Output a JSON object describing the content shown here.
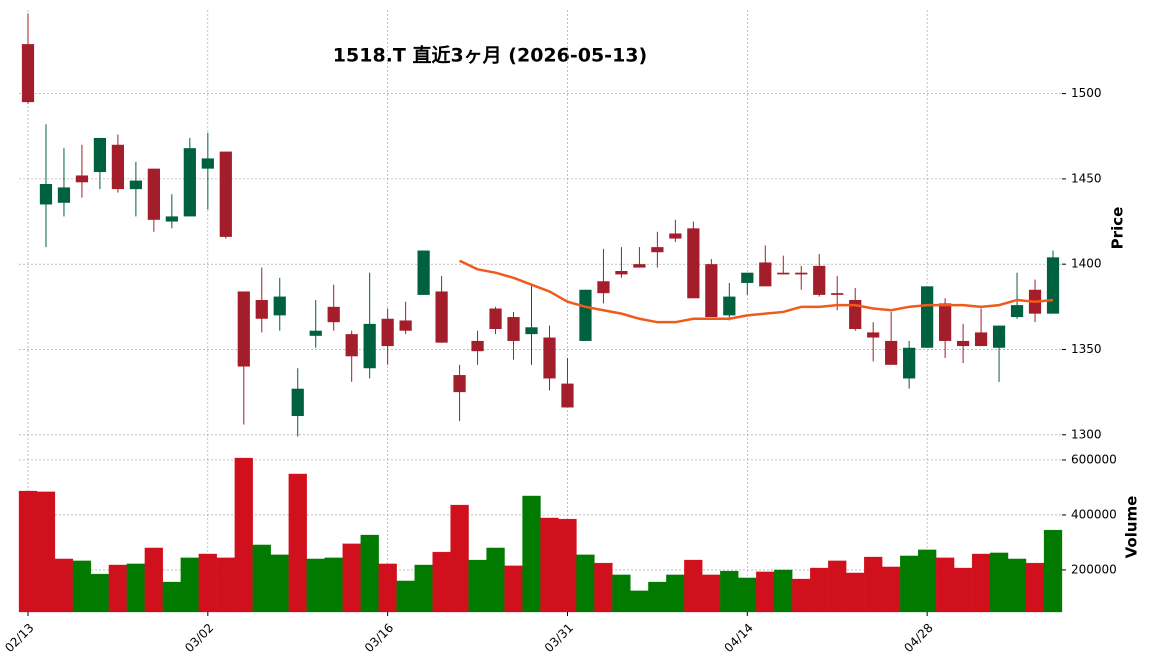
{
  "chart_data": {
    "type": "candlestick",
    "title": "1518.T 直近3ヶ月 (2026-05-13)",
    "categories": [
      "02/13",
      null,
      null,
      null,
      null,
      null,
      null,
      null,
      null,
      null,
      "03/02",
      null,
      null,
      null,
      null,
      null,
      null,
      null,
      null,
      null,
      "03/16",
      null,
      null,
      null,
      null,
      null,
      null,
      null,
      null,
      null,
      "03/31",
      null,
      null,
      null,
      null,
      null,
      null,
      null,
      null,
      null,
      "04/14",
      null,
      null,
      null,
      null,
      null,
      null,
      null,
      null,
      null,
      "04/28",
      null,
      null,
      null,
      null,
      null,
      null,
      null
    ],
    "open": [
      1529,
      1435,
      1436,
      1452,
      1454,
      1470,
      1444,
      1456,
      1425,
      1428,
      1456,
      1466,
      1384,
      1379,
      1370,
      1311,
      1358,
      1375,
      1359,
      1339,
      1368,
      1367,
      1382,
      1384,
      1335,
      1355,
      1374,
      1369,
      1359,
      1357,
      1330,
      1355,
      1390,
      1396,
      1400,
      1410,
      1418,
      1421,
      1400,
      1370,
      1389,
      1401,
      1395,
      1395,
      1399,
      1383,
      1379,
      1360,
      1355,
      1333,
      1351,
      1377,
      1355,
      1360,
      1351,
      1369,
      1385,
      1371
    ],
    "high": [
      1547,
      1482,
      1468,
      1470,
      1474,
      1476,
      1460,
      1456,
      1441,
      1474,
      1477,
      1466,
      1384,
      1398,
      1392,
      1339,
      1379,
      1388,
      1361,
      1395,
      1374,
      1378,
      1408,
      1393,
      1341,
      1361,
      1375,
      1372,
      1388,
      1364,
      1345,
      1385,
      1409,
      1410,
      1410,
      1419,
      1426,
      1425,
      1403,
      1389,
      1395,
      1411,
      1405,
      1399,
      1406,
      1393,
      1386,
      1366,
      1372,
      1355,
      1387,
      1380,
      1365,
      1374,
      1364,
      1395,
      1391,
      1408
    ],
    "low": [
      1494,
      1410,
      1428,
      1439,
      1444,
      1442,
      1428,
      1419,
      1421,
      1428,
      1432,
      1415,
      1306,
      1360,
      1361,
      1299,
      1351,
      1361,
      1331,
      1333,
      1341,
      1359,
      1382,
      1354,
      1308,
      1341,
      1359,
      1344,
      1341,
      1326,
      1316,
      1355,
      1377,
      1392,
      1398,
      1398,
      1413,
      1380,
      1369,
      1367,
      1382,
      1387,
      1394,
      1385,
      1381,
      1373,
      1361,
      1343,
      1341,
      1327,
      1351,
      1345,
      1342,
      1352,
      1331,
      1368,
      1366,
      1371
    ],
    "close": [
      1495,
      1447,
      1445,
      1448,
      1474,
      1444,
      1449,
      1426,
      1428,
      1468,
      1462,
      1416,
      1340,
      1368,
      1381,
      1327,
      1361,
      1366,
      1346,
      1365,
      1352,
      1361,
      1408,
      1354,
      1325,
      1349,
      1362,
      1355,
      1363,
      1333,
      1316,
      1385,
      1383,
      1394,
      1398,
      1407,
      1415,
      1380,
      1369,
      1381,
      1395,
      1387,
      1394,
      1394,
      1382,
      1382,
      1362,
      1357,
      1341,
      1351,
      1387,
      1355,
      1352,
      1352,
      1364,
      1376,
      1371,
      1404
    ],
    "up_color": "#00613f",
    "down_color": "#a31d2a",
    "ma": {
      "color": "#f05a1a",
      "values": [
        null,
        null,
        null,
        null,
        null,
        null,
        null,
        null,
        null,
        null,
        null,
        null,
        null,
        null,
        null,
        null,
        null,
        null,
        null,
        null,
        null,
        null,
        null,
        null,
        1402,
        1397,
        1395,
        1392,
        1388,
        1384,
        1378,
        1375,
        1373,
        1371,
        1368,
        1366,
        1366,
        1368,
        1368,
        1368,
        1370,
        1371,
        1372,
        1375,
        1375,
        1376,
        1376,
        1374,
        1373,
        1375,
        1376,
        1376,
        1376,
        1375,
        1376,
        1379,
        1378,
        1379
      ]
    },
    "ylabel": "Price",
    "ylim": [
      1294,
      1549
    ],
    "yticks": [
      1300,
      1350,
      1400,
      1450,
      1500
    ],
    "grid": true,
    "volume": {
      "label": "Volume",
      "ylim": [
        47000,
        618000
      ],
      "yticks": [
        200000,
        400000,
        600000
      ],
      "values": [
        487000,
        484000,
        240000,
        233000,
        185000,
        218000,
        222000,
        280000,
        156000,
        244000,
        258000,
        244000,
        607000,
        291000,
        255000,
        549000,
        240000,
        244000,
        295000,
        327000,
        222000,
        160000,
        218000,
        265000,
        436000,
        236000,
        280000,
        215000,
        469000,
        389000,
        385000,
        255000,
        225000,
        182000,
        124000,
        156000,
        182000,
        236000,
        182000,
        196000,
        171000,
        193000,
        200000,
        167000,
        207000,
        233000,
        189000,
        247000,
        211000,
        251000,
        273000,
        244000,
        207000,
        258000,
        262000,
        240000,
        225000,
        345000
      ],
      "colors": [
        "#d0101d",
        "#d0101d",
        "#d0101d",
        "#007a00",
        "#007a00",
        "#d0101d",
        "#007a00",
        "#d0101d",
        "#007a00",
        "#007a00",
        "#d0101d",
        "#d0101d",
        "#d0101d",
        "#007a00",
        "#007a00",
        "#d0101d",
        "#007a00",
        "#007a00",
        "#d0101d",
        "#007a00",
        "#d0101d",
        "#007a00",
        "#007a00",
        "#d0101d",
        "#d0101d",
        "#007a00",
        "#007a00",
        "#d0101d",
        "#007a00",
        "#d0101d",
        "#d0101d",
        "#007a00",
        "#d0101d",
        "#007a00",
        "#007a00",
        "#007a00",
        "#007a00",
        "#d0101d",
        "#d0101d",
        "#007a00",
        "#007a00",
        "#d0101d",
        "#007a00",
        "#d0101d",
        "#d0101d",
        "#d0101d",
        "#d0101d",
        "#d0101d",
        "#d0101d",
        "#007a00",
        "#007a00",
        "#d0101d",
        "#d0101d",
        "#d0101d",
        "#007a00",
        "#007a00",
        "#d0101d",
        "#007a00"
      ]
    }
  }
}
